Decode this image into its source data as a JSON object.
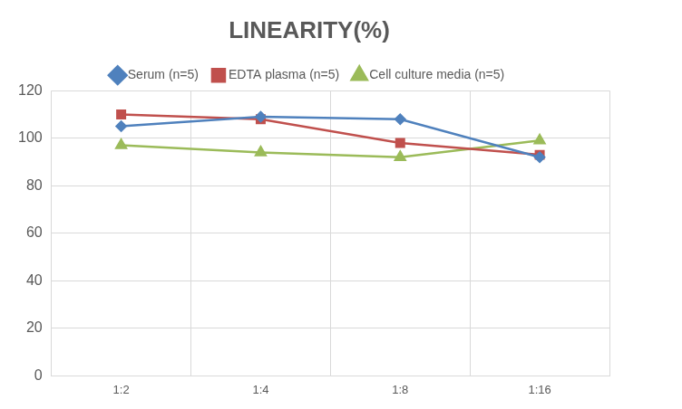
{
  "chart_data": {
    "type": "line",
    "title": "LINEARITY(%)",
    "categories": [
      "1:2",
      "1:4",
      "1:8",
      "1:16"
    ],
    "series": [
      {
        "name": "Serum (n=5)",
        "color": "#4f81bd",
        "marker": "diamond",
        "values": [
          105,
          109,
          108,
          92
        ]
      },
      {
        "name": "EDTA plasma (n=5)",
        "color": "#c0504d",
        "marker": "square",
        "values": [
          110,
          108,
          98,
          93
        ]
      },
      {
        "name": "Cell culture media (n=5)",
        "color": "#9bbb59",
        "marker": "triangle",
        "values": [
          97,
          94,
          92,
          99
        ]
      }
    ],
    "ylim": [
      0,
      120
    ],
    "yticks": [
      0,
      20,
      40,
      60,
      80,
      100,
      120
    ],
    "grid": true,
    "legend": "top"
  }
}
